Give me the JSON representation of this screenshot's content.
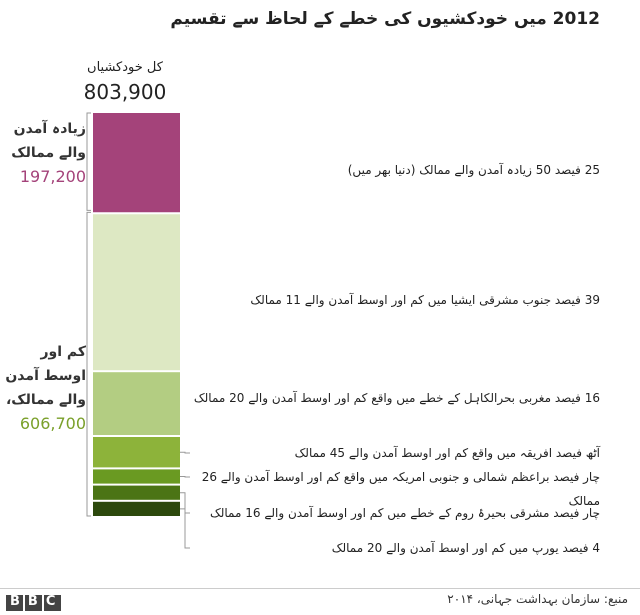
{
  "chart_data": {
    "type": "bar",
    "stacked": true,
    "title": "2012 میں خودکشیوں کی خطے کے لحاظ سے تقسیم",
    "total_label": "کل خودکشیاں",
    "total": 803900,
    "total_value_label": "803,900",
    "values": [
      25,
      39,
      16,
      8,
      4,
      4,
      4
    ],
    "value_labels": [
      "25 فیصد 50 زیادہ آمدن والے ممالک (دنیا بھر میں)",
      "39 فیصد جنوب مشرقی ایشیا میں کم اور اوسط آمدن والے 11 ممالک",
      "16 فیصد مغربی بحرالکاہل کے خطے میں واقع کم اور اوسط آمدن والے 20 ممالک",
      "آٹھ فیصد افریقہ میں واقع کم اور اوسط آمدن والے 45 ممالک",
      "چار فیصد براعظم شمالی و جنوبی امریکہ میں واقع کم اور اوسط آمدن والے 26 ممالک",
      "چار فیصد مشرقی بحیرۂ روم کے خطے میں کم اور اوسط آمدن والے 16 ممالک",
      "4 فیصد یورپ میں کم اور اوسط آمدن والے 20 ممالک"
    ],
    "colors": [
      "#a4437a",
      "#dde8c3",
      "#b3cd82",
      "#8db33a",
      "#6a9a22",
      "#4b7415",
      "#2c490d"
    ],
    "groups": [
      {
        "label": "زیادہ آمدن والے ممالک",
        "value": 197200,
        "value_label": "197,200",
        "color": "#a4437a"
      },
      {
        "label": "کم اور اوسط آمدن والے ممالک،",
        "value": 606700,
        "value_label": "606,700",
        "color": "#7aa02a"
      }
    ]
  },
  "footer": {
    "source": "منبع: سازمان بہداشت جہانی، ۲۰۱۴",
    "logo": "BBC"
  }
}
